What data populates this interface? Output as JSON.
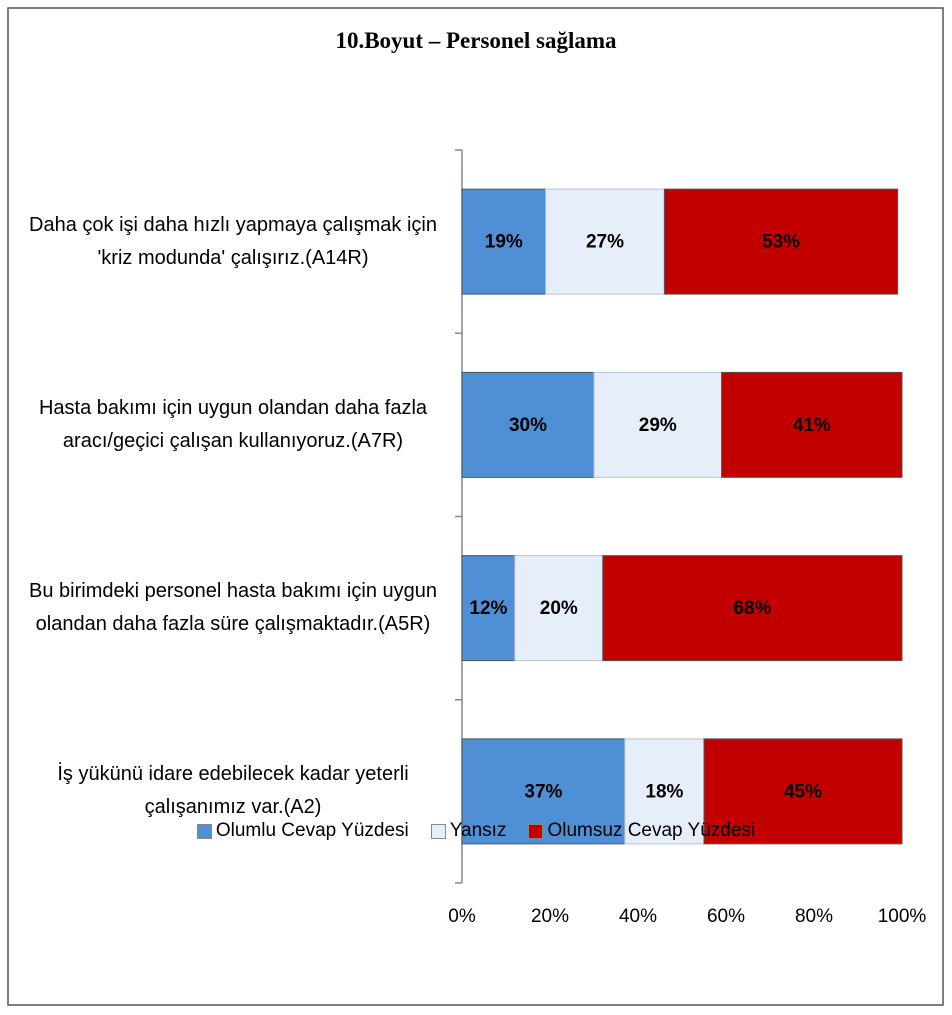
{
  "chart_data": {
    "type": "stacked-barh",
    "title": "10.Boyut – Personel sağlama",
    "categories": [
      "Daha çok işi daha hızlı yapmaya çalışmak için 'kriz modunda' çalışırız.(A14R)",
      "Hasta bakımı için uygun olandan daha fazla aracı/geçici çalışan kullanıyoruz.(A7R)",
      "Bu birimdeki personel hasta bakımı için uygun olandan daha fazla süre çalışmaktadır.(A5R)",
      "İş yükünü idare edebilecek kadar yeterli çalışanımız var.(A2)"
    ],
    "series": [
      {
        "name": "Olumlu Cevap Yüzdesi",
        "color": "#4f8fd6",
        "values": [
          19,
          30,
          12,
          37
        ],
        "value_labels": [
          "19%",
          "30%",
          "12%",
          "37%"
        ]
      },
      {
        "name": "Yansız",
        "color": "#e6eef9",
        "values": [
          27,
          29,
          20,
          18
        ],
        "value_labels": [
          "27%",
          "29%",
          "20%",
          "18%"
        ]
      },
      {
        "name": "Olumsuz Cevap Yüzdesi",
        "color": "#c30000",
        "values": [
          53,
          41,
          68,
          45
        ],
        "value_labels": [
          "53%",
          "41%",
          "68%",
          "45%"
        ]
      }
    ],
    "xlim": [
      0,
      100
    ],
    "xticks": [
      {
        "value": 0,
        "label": "0%"
      },
      {
        "value": 20,
        "label": "20%"
      },
      {
        "value": 40,
        "label": "40%"
      },
      {
        "value": 60,
        "label": "60%"
      },
      {
        "value": 80,
        "label": "80%"
      },
      {
        "value": 100,
        "label": "100%"
      }
    ],
    "legend": "bottom"
  }
}
